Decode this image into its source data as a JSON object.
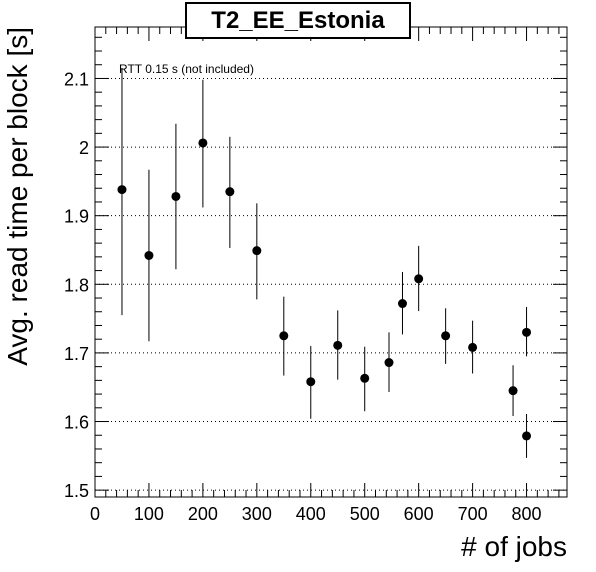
{
  "chart_data": {
    "type": "scatter",
    "title": "T2_EE_Estonia",
    "xlabel": "# of jobs",
    "ylabel": "Avg. read time per block [s]",
    "annotation": "RTT 0.15 s (not included)",
    "xlim": [
      0,
      875
    ],
    "ylim": [
      1.49,
      2.175
    ],
    "x_ticks": [
      0,
      100,
      200,
      300,
      400,
      500,
      600,
      700,
      800
    ],
    "y_ticks": [
      1.5,
      1.6,
      1.7,
      1.8,
      1.9,
      2.0,
      2.1
    ],
    "x_tick_labels": [
      "0",
      "100",
      "200",
      "300",
      "400",
      "500",
      "600",
      "700",
      "800"
    ],
    "y_tick_labels": [
      "1.5",
      "1.6",
      "1.7",
      "1.8",
      "1.9",
      "2",
      "2.1"
    ],
    "grid": "horizontal dotted",
    "marker_color": "#000000",
    "points": [
      {
        "x": 50,
        "y": 1.938,
        "err_lo": 1.755,
        "err_hi": 2.115
      },
      {
        "x": 100,
        "y": 1.842,
        "err_lo": 1.717,
        "err_hi": 1.967
      },
      {
        "x": 150,
        "y": 1.928,
        "err_lo": 1.822,
        "err_hi": 2.034
      },
      {
        "x": 200,
        "y": 2.006,
        "err_lo": 1.912,
        "err_hi": 2.098
      },
      {
        "x": 250,
        "y": 1.935,
        "err_lo": 1.853,
        "err_hi": 2.015
      },
      {
        "x": 300,
        "y": 1.849,
        "err_lo": 1.778,
        "err_hi": 1.918
      },
      {
        "x": 350,
        "y": 1.725,
        "err_lo": 1.667,
        "err_hi": 1.782
      },
      {
        "x": 400,
        "y": 1.658,
        "err_lo": 1.604,
        "err_hi": 1.71
      },
      {
        "x": 450,
        "y": 1.711,
        "err_lo": 1.661,
        "err_hi": 1.762
      },
      {
        "x": 500,
        "y": 1.663,
        "err_lo": 1.615,
        "err_hi": 1.709
      },
      {
        "x": 545,
        "y": 1.686,
        "err_lo": 1.643,
        "err_hi": 1.73
      },
      {
        "x": 570,
        "y": 1.772,
        "err_lo": 1.727,
        "err_hi": 1.818
      },
      {
        "x": 600,
        "y": 1.808,
        "err_lo": 1.761,
        "err_hi": 1.856
      },
      {
        "x": 650,
        "y": 1.725,
        "err_lo": 1.684,
        "err_hi": 1.765
      },
      {
        "x": 700,
        "y": 1.708,
        "err_lo": 1.67,
        "err_hi": 1.747
      },
      {
        "x": 775,
        "y": 1.645,
        "err_lo": 1.608,
        "err_hi": 1.682
      },
      {
        "x": 800,
        "y": 1.73,
        "err_lo": 1.695,
        "err_hi": 1.767
      },
      {
        "x": 800,
        "y": 1.579,
        "err_lo": 1.547,
        "err_hi": 1.611
      }
    ]
  }
}
